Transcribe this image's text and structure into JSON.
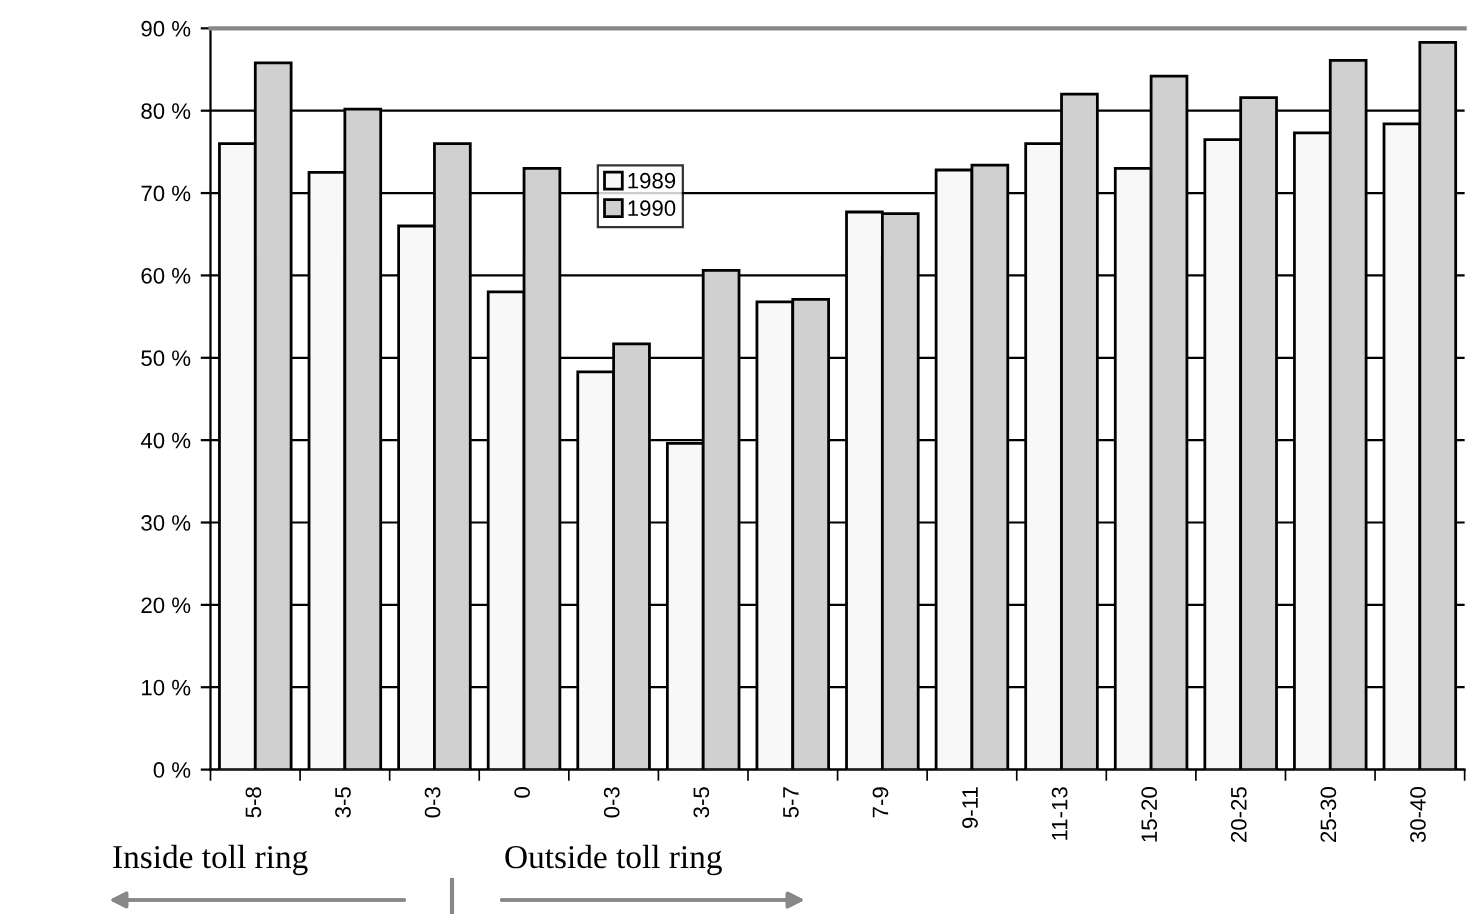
{
  "chart_data": {
    "type": "bar",
    "categories": [
      "5-8",
      "3-5",
      "0-3",
      "0",
      "0-3",
      "3-5",
      "5-7",
      "7-9",
      "9-11",
      "11-13",
      "15-20",
      "20-25",
      "25-30",
      "30-40"
    ],
    "series": [
      {
        "name": "1989",
        "color": "#f8f8f8",
        "values": [
          76,
          72.5,
          66,
          58,
          48.3,
          39.6,
          56.8,
          67.7,
          72.8,
          76,
          73,
          76.5,
          77.3,
          78.4
        ]
      },
      {
        "name": "1990",
        "color": "#d0d0d0",
        "values": [
          85.8,
          80.2,
          76,
          73,
          51.7,
          60.6,
          57.1,
          67.5,
          73.4,
          82,
          84.2,
          81.6,
          86.1,
          88.3
        ]
      }
    ],
    "ylim": [
      0,
      90
    ],
    "yticks": [
      {
        "value": 0,
        "label": "0 %"
      },
      {
        "value": 10,
        "label": "10 %"
      },
      {
        "value": 20,
        "label": "20 %"
      },
      {
        "value": 30,
        "label": "30 %"
      },
      {
        "value": 40,
        "label": "40 %"
      },
      {
        "value": 50,
        "label": "50 %"
      },
      {
        "value": 60,
        "label": "60 %"
      },
      {
        "value": 70,
        "label": "70 %"
      },
      {
        "value": 80,
        "label": "80 %"
      },
      {
        "value": 90,
        "label": "90 %"
      }
    ],
    "grid": "y",
    "legend": "top",
    "annotations": [
      "Inside toll ring",
      "Outside toll ring"
    ]
  }
}
